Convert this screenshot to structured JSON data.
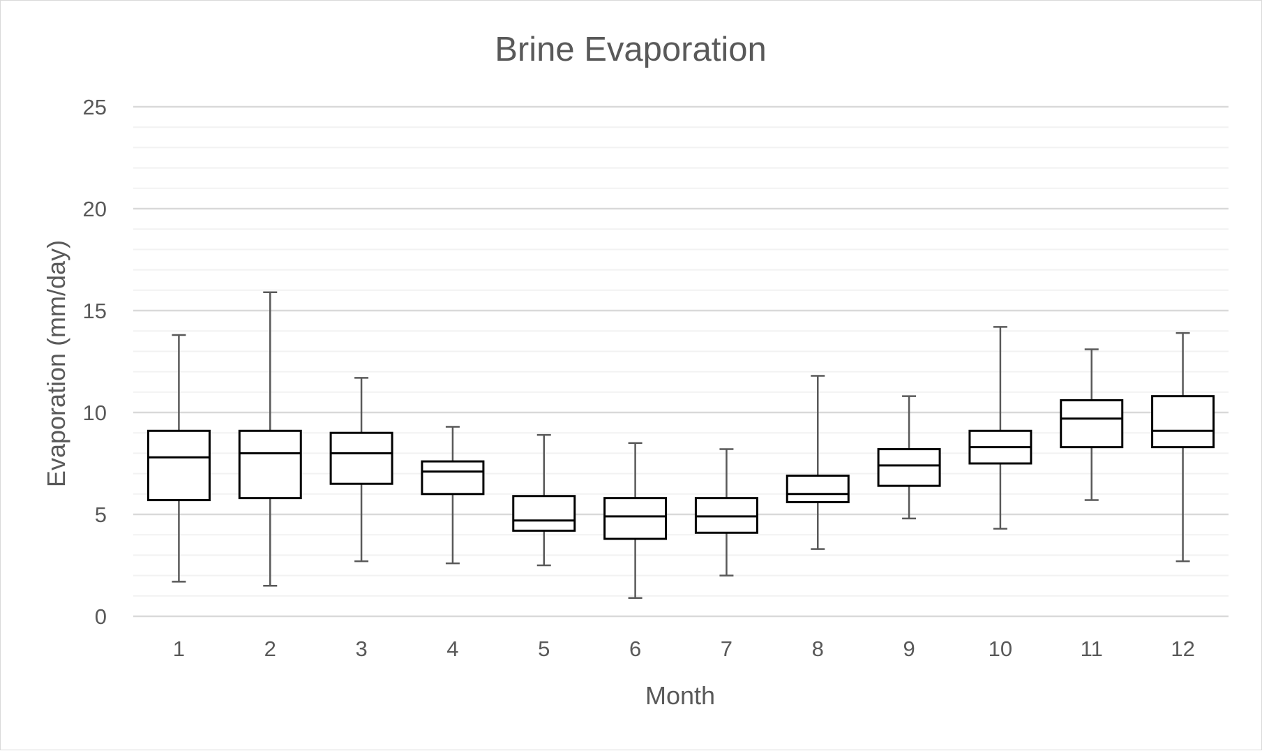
{
  "chart_data": {
    "type": "boxplot",
    "title": "Brine Evaporation",
    "xlabel": "Month",
    "ylabel": "Evaporation (mm/day)",
    "ylim": [
      0,
      25
    ],
    "y_ticks": [
      0,
      5,
      10,
      15,
      20,
      25
    ],
    "y_tick_labels": [
      "0",
      "5",
      "10",
      "15",
      "20",
      "25"
    ],
    "categories": [
      "1",
      "2",
      "3",
      "4",
      "5",
      "6",
      "7",
      "8",
      "9",
      "10",
      "11",
      "12"
    ],
    "grid": "major and minor horizontal",
    "legend": "none",
    "boxes": [
      {
        "min": 1.7,
        "q1": 5.7,
        "median": 7.8,
        "q3": 9.1,
        "max": 13.8
      },
      {
        "min": 1.5,
        "q1": 5.8,
        "median": 8.0,
        "q3": 9.1,
        "max": 15.9
      },
      {
        "min": 2.7,
        "q1": 6.5,
        "median": 8.0,
        "q3": 9.0,
        "max": 11.7
      },
      {
        "min": 2.6,
        "q1": 6.0,
        "median": 7.1,
        "q3": 7.6,
        "max": 9.3
      },
      {
        "min": 2.5,
        "q1": 4.2,
        "median": 4.7,
        "q3": 5.9,
        "max": 8.9
      },
      {
        "min": 0.9,
        "q1": 3.8,
        "median": 4.9,
        "q3": 5.8,
        "max": 8.5
      },
      {
        "min": 2.0,
        "q1": 4.1,
        "median": 4.9,
        "q3": 5.8,
        "max": 8.2
      },
      {
        "min": 3.3,
        "q1": 5.6,
        "median": 6.0,
        "q3": 6.9,
        "max": 11.8
      },
      {
        "min": 4.8,
        "q1": 6.4,
        "median": 7.4,
        "q3": 8.2,
        "max": 10.8
      },
      {
        "min": 4.3,
        "q1": 7.5,
        "median": 8.3,
        "q3": 9.1,
        "max": 14.2
      },
      {
        "min": 5.7,
        "q1": 8.3,
        "median": 9.7,
        "q3": 10.6,
        "max": 13.1
      },
      {
        "min": 2.7,
        "q1": 8.3,
        "median": 9.1,
        "q3": 10.8,
        "max": 13.9
      }
    ],
    "colors": {
      "box_stroke": "#000000",
      "whisker": "#595959",
      "major_grid": "#d9d9d9",
      "minor_grid": "#f2f2f2",
      "text": "#595959"
    }
  }
}
